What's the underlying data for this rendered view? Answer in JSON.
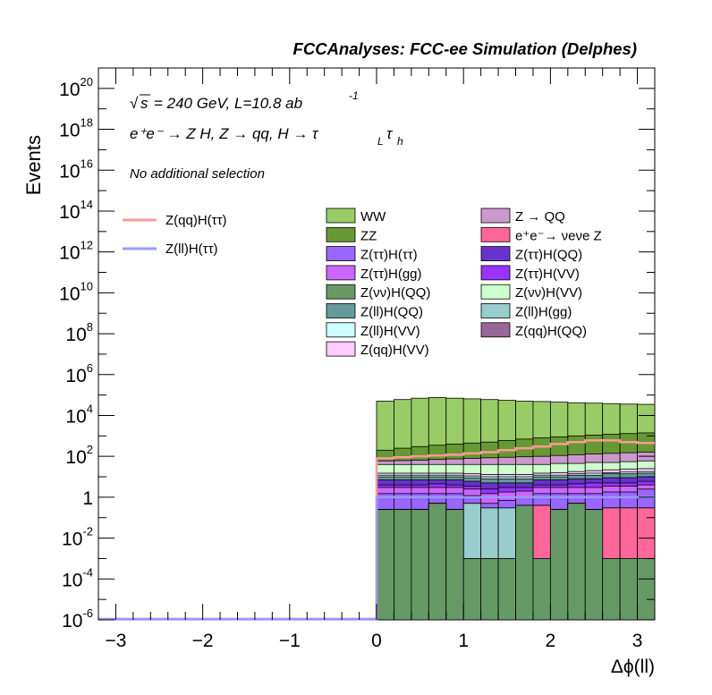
{
  "header": {
    "title": "FCCAnalyses: FCC-ee Simulation (Delphes)"
  },
  "annotations": {
    "energy_sqrt": "s",
    "energy_rest": "= 240 GeV, L=10.8 ab",
    "energy_exp": "-1",
    "process": "e⁺e⁻ → Z H, Z → qq, H → τ",
    "process_sub1": "L",
    "process_tau2": "τ",
    "process_sub2": "h",
    "selection": "No additional selection"
  },
  "axes": {
    "ylabel": "Events",
    "xlabel": "Δϕ(ll)"
  },
  "colors": {
    "WW": "#99cc66",
    "ZZ": "#669933",
    "Zqq": "#cc99cc",
    "nunuZ": "#ff6699",
    "tautauH_tautau": "#9966ff",
    "tautauH_QQ": "#6633cc",
    "tautauH_gg": "#cc66ff",
    "tautauH_VV": "#9933ff",
    "nunuH_QQ": "#669966",
    "nunuH_VV": "#ccffcc",
    "llH_QQ": "#669999",
    "llH_gg": "#99cccc",
    "llH_VV": "#ccffff",
    "qqH_QQ": "#996699",
    "qqH_VV": "#ffccff",
    "sig_qq": "#ff9999",
    "sig_ll": "#9999ff"
  },
  "chart_data": {
    "type": "histogram",
    "title": "FCCAnalyses: FCC-ee Simulation (Delphes)",
    "xlabel": "Δϕ(ll)",
    "ylabel": "Events",
    "xlim": [
      -3.2,
      3.2
    ],
    "ylim": [
      1e-06,
      1e+21
    ],
    "log_y": true,
    "x_ticks": [
      -3,
      -2,
      -1,
      0,
      1,
      2,
      3
    ],
    "x_tick_labels": [
      "−3",
      "−2",
      "−1",
      "0",
      "1",
      "2",
      "3"
    ],
    "y_ticks": [
      1e-06,
      0.0001,
      0.01,
      1,
      100.0,
      10000.0,
      1000000.0,
      100000000.0,
      10000000000.0,
      1000000000000.0,
      100000000000000.0,
      1e+16,
      1e+18,
      1e+20
    ],
    "y_tick_labels": [
      {
        "base": "10",
        "exp": "-6"
      },
      {
        "base": "10",
        "exp": "-4"
      },
      {
        "base": "10",
        "exp": "-2"
      },
      {
        "base": "1",
        "exp": ""
      },
      {
        "base": "10",
        "exp": "2"
      },
      {
        "base": "10",
        "exp": "4"
      },
      {
        "base": "10",
        "exp": "6"
      },
      {
        "base": "10",
        "exp": "8"
      },
      {
        "base": "10",
        "exp": "10"
      },
      {
        "base": "10",
        "exp": "12"
      },
      {
        "base": "10",
        "exp": "14"
      },
      {
        "base": "10",
        "exp": "16"
      },
      {
        "base": "10",
        "exp": "18"
      },
      {
        "base": "10",
        "exp": "20"
      }
    ],
    "bin_edges": [
      0,
      0.2,
      0.4,
      0.6,
      0.8,
      1.0,
      1.2,
      1.4,
      1.6,
      1.8,
      2.0,
      2.2,
      2.4,
      2.6,
      2.8,
      3.0,
      3.2
    ],
    "stack_order": [
      "nunuH_QQ",
      "nunuZ",
      "llH_gg",
      "qqH_QQ",
      "tautauH_tautau",
      "tautauH_gg",
      "tautauH_VV",
      "tautauH_QQ",
      "llH_QQ",
      "llH_VV",
      "qqH_VV",
      "nunuH_VV",
      "Zqq",
      "ZZ",
      "WW"
    ],
    "stack_cumulative": {
      "nunuH_QQ": [
        0.25,
        0.25,
        0.25,
        0.5,
        0.25,
        0.001,
        0.001,
        0.001,
        0.4,
        0.001,
        0.25,
        0.5,
        0.25,
        0.001,
        0.001,
        0.001
      ],
      "nunuZ": [
        0.25,
        0.25,
        0.25,
        0.5,
        0.25,
        0.001,
        0.001,
        0.001,
        0.4,
        0.4,
        0.25,
        0.5,
        0.25,
        0.3,
        0.3,
        0.3
      ],
      "llH_gg": [
        0.25,
        0.25,
        0.25,
        0.5,
        0.25,
        0.5,
        0.3,
        0.3,
        0.4,
        0.4,
        0.25,
        0.5,
        0.25,
        0.3,
        0.3,
        0.3
      ],
      "qqH_QQ": [
        0.25,
        0.25,
        0.25,
        0.5,
        0.25,
        0.5,
        0.3,
        0.3,
        0.4,
        0.4,
        0.25,
        0.5,
        0.25,
        0.3,
        0.3,
        0.3
      ],
      "tautauH_tautau": [
        1.5,
        1.5,
        1.5,
        1.5,
        1.5,
        1.2,
        0.5,
        0.7,
        1.0,
        1.5,
        1.5,
        1.5,
        1.5,
        1.8,
        1.8,
        2.5
      ],
      "tautauH_gg": [
        3,
        3,
        3,
        3,
        3,
        2.5,
        1.5,
        1.8,
        2,
        3,
        3,
        3,
        3,
        3.5,
        3.5,
        4
      ],
      "tautauH_VV": [
        4,
        4,
        4,
        4.5,
        4,
        3.5,
        2.5,
        3,
        3,
        4,
        4,
        4.5,
        5,
        5,
        5,
        6
      ],
      "tautauH_QQ": [
        7,
        7,
        7,
        7,
        7,
        6,
        5,
        5,
        5,
        7,
        7,
        8,
        8,
        9,
        9,
        10
      ],
      "llH_QQ": [
        10,
        10,
        10,
        10,
        10,
        9,
        8,
        8,
        8,
        10,
        10,
        12,
        12,
        14,
        14,
        15
      ],
      "llH_VV": [
        12,
        12,
        12,
        12,
        12,
        11,
        10,
        10,
        10,
        12,
        12,
        14,
        15,
        16,
        17,
        18
      ],
      "qqH_VV": [
        15,
        15,
        15,
        15,
        15,
        14,
        13,
        13,
        13,
        15,
        16,
        18,
        20,
        22,
        24,
        25
      ],
      "nunuH_VV": [
        40,
        40,
        40,
        40,
        40,
        40,
        40,
        40,
        40,
        40,
        45,
        45,
        50,
        50,
        55,
        60
      ],
      "Zqq": [
        60,
        62,
        65,
        70,
        75,
        80,
        85,
        90,
        95,
        100,
        110,
        120,
        130,
        140,
        150,
        160
      ],
      "ZZ": [
        200,
        250,
        300,
        350,
        400,
        450,
        500,
        600,
        700,
        800,
        900,
        1000,
        1100,
        1200,
        1300,
        1400
      ],
      "WW": [
        50000,
        60000,
        70000,
        75000,
        70000,
        65000,
        60000,
        55000,
        50000,
        48000,
        45000,
        42000,
        40000,
        38000,
        36000,
        35000
      ]
    },
    "signals": [
      {
        "name": "Z(qq)H(ττ)",
        "color": "#ff9999",
        "values": [
          80,
          90,
          100,
          110,
          120,
          140,
          160,
          200,
          250,
          300,
          400,
          500,
          600,
          600,
          500,
          450
        ]
      },
      {
        "name": "Z(ll)H(ττ)",
        "color": "#9999ff",
        "values": [
          1,
          1,
          1,
          1,
          1,
          1,
          1,
          1,
          1,
          1,
          1,
          1,
          1,
          1,
          1,
          1
        ]
      }
    ],
    "legend_signals": [
      "Z(qq)H(ττ)",
      "Z(ll)H(ττ)"
    ],
    "legend_backgrounds": [
      {
        "key": "WW",
        "label": "WW"
      },
      {
        "key": "Zqq",
        "label": "Z → QQ"
      },
      {
        "key": "ZZ",
        "label": "ZZ"
      },
      {
        "key": "nunuZ",
        "label": "e⁺e⁻→ νeνe Z"
      },
      {
        "key": "tautauH_tautau",
        "label": "Z(ττ)H(ττ)"
      },
      {
        "key": "tautauH_QQ",
        "label": "Z(ττ)H(QQ)"
      },
      {
        "key": "tautauH_gg",
        "label": "Z(ττ)H(gg)"
      },
      {
        "key": "tautauH_VV",
        "label": "Z(ττ)H(VV)"
      },
      {
        "key": "nunuH_QQ",
        "label": "Z(νν)H(QQ)"
      },
      {
        "key": "nunuH_VV",
        "label": "Z(νν)H(VV)"
      },
      {
        "key": "llH_QQ",
        "label": "Z(ll)H(QQ)"
      },
      {
        "key": "llH_gg",
        "label": "Z(ll)H(gg)"
      },
      {
        "key": "llH_VV",
        "label": "Z(ll)H(VV)"
      },
      {
        "key": "qqH_QQ",
        "label": "Z(qq)H(QQ)"
      },
      {
        "key": "qqH_VV",
        "label": "Z(qq)H(VV)"
      }
    ],
    "legend_placement": "top",
    "grid": false
  }
}
